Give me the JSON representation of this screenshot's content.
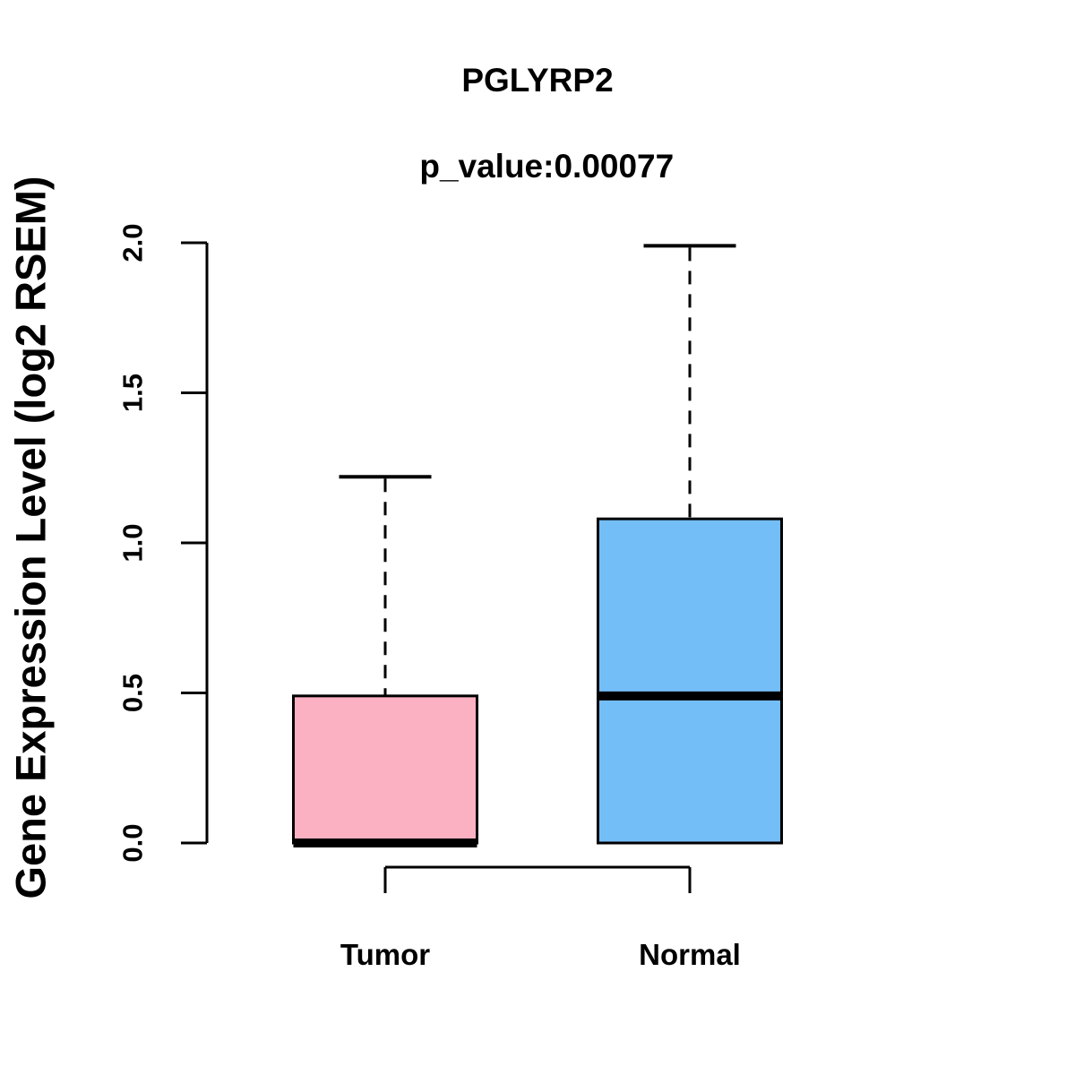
{
  "header": {
    "title": "PGLYRP2",
    "subtitle": "p_value:0.00077"
  },
  "chart_data": {
    "type": "boxplot",
    "title": "PGLYRP2",
    "subtitle": "p_value:0.00077",
    "ylabel": "Gene Expression Level (log2 RSEM)",
    "xlabel": "",
    "ylim": [
      0.0,
      2.0
    ],
    "yticks": [
      "0.0",
      "0.5",
      "1.0",
      "1.5",
      "2.0"
    ],
    "grid": false,
    "legend": false,
    "categories": [
      "Tumor",
      "Normal"
    ],
    "series": [
      {
        "name": "Tumor",
        "lower_whisker": 0.0,
        "q1": 0.0,
        "median": 0.0,
        "q3": 0.49,
        "upper_whisker": 1.22,
        "fill_color": "#FCB1C3"
      },
      {
        "name": "Normal",
        "lower_whisker": 0.0,
        "q1": 0.0,
        "median": 0.49,
        "q3": 1.08,
        "upper_whisker": 1.99,
        "fill_color": "#74BEF8"
      }
    ],
    "colors": {
      "stroke": "#000000",
      "background": "#FFFFFF"
    },
    "comparison_bracket": {
      "between": [
        "Tumor",
        "Normal"
      ]
    }
  }
}
